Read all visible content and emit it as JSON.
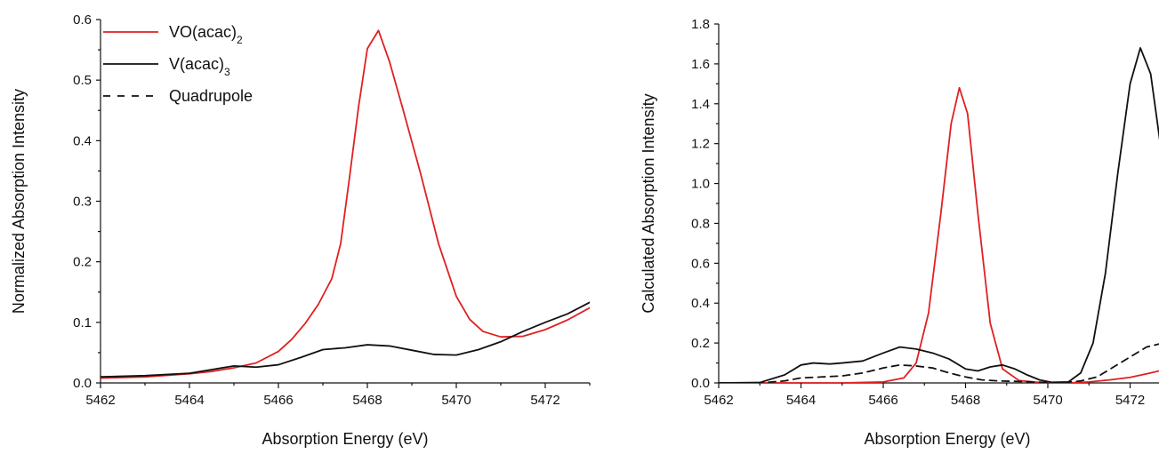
{
  "chart_data": [
    {
      "type": "line",
      "xlabel": "Absorption Energy (eV)",
      "ylabel": "Normalized Absorption Intensity",
      "xlim": [
        5462,
        5473
      ],
      "ylim": [
        0,
        0.6
      ],
      "xticks": [
        5462,
        5464,
        5466,
        5468,
        5470,
        5472
      ],
      "yticks": [
        0.0,
        0.1,
        0.2,
        0.3,
        0.4,
        0.5,
        0.6
      ],
      "ytick_format": 1,
      "legend_position": "top-left",
      "legend": [
        {
          "label": "VO(acac)",
          "sub": "2",
          "color": "#e02020",
          "dash": false
        },
        {
          "label": "V(acac)",
          "sub": "3",
          "color": "#111111",
          "dash": false
        },
        {
          "label": "Quadrupole",
          "sub": "",
          "color": "#111111",
          "dash": true
        }
      ],
      "series": [
        {
          "name": "VO(acac)2",
          "color": "#e02020",
          "dash": false,
          "x": [
            5462,
            5463,
            5464,
            5464.5,
            5465,
            5465.5,
            5466,
            5466.3,
            5466.6,
            5466.9,
            5467.2,
            5467.4,
            5467.6,
            5467.8,
            5468.0,
            5468.25,
            5468.5,
            5468.8,
            5469.2,
            5469.6,
            5470.0,
            5470.3,
            5470.6,
            5471.0,
            5471.5,
            5472.0,
            5472.5,
            5473
          ],
          "y": [
            0.008,
            0.01,
            0.015,
            0.019,
            0.025,
            0.033,
            0.052,
            0.072,
            0.098,
            0.13,
            0.172,
            0.23,
            0.34,
            0.455,
            0.552,
            0.582,
            0.53,
            0.452,
            0.345,
            0.23,
            0.143,
            0.105,
            0.085,
            0.076,
            0.077,
            0.088,
            0.104,
            0.124
          ]
        },
        {
          "name": "V(acac)3",
          "color": "#111111",
          "dash": false,
          "x": [
            5462,
            5463,
            5464,
            5464.5,
            5465,
            5465.5,
            5466,
            5466.5,
            5467,
            5467.5,
            5468,
            5468.5,
            5469,
            5469.5,
            5470,
            5470.5,
            5471,
            5471.5,
            5472,
            5472.5,
            5473
          ],
          "y": [
            0.01,
            0.012,
            0.016,
            0.022,
            0.028,
            0.026,
            0.03,
            0.042,
            0.055,
            0.058,
            0.063,
            0.061,
            0.054,
            0.047,
            0.046,
            0.055,
            0.068,
            0.085,
            0.1,
            0.114,
            0.133
          ]
        }
      ]
    },
    {
      "type": "line",
      "xlabel": "Absorption Energy (eV)",
      "ylabel": "Calculated Absorption Intensity",
      "xlim": [
        5462,
        5473
      ],
      "ylim": [
        0,
        1.8
      ],
      "xticks": [
        5462,
        5464,
        5466,
        5468,
        5470,
        5472
      ],
      "yticks": [
        0.0,
        0.2,
        0.4,
        0.6,
        0.8,
        1.0,
        1.2,
        1.4,
        1.6,
        1.8
      ],
      "ytick_format": 1,
      "series": [
        {
          "name": "VO(acac)2",
          "color": "#e02020",
          "dash": false,
          "x": [
            5462,
            5465,
            5466,
            5466.5,
            5466.8,
            5467.1,
            5467.4,
            5467.65,
            5467.85,
            5468.05,
            5468.3,
            5468.6,
            5468.9,
            5469.3,
            5469.8,
            5470.5,
            5471,
            5471.5,
            5472,
            5472.5,
            5473
          ],
          "y": [
            0,
            0,
            0.005,
            0.025,
            0.1,
            0.35,
            0.85,
            1.3,
            1.48,
            1.35,
            0.85,
            0.3,
            0.07,
            0.012,
            0.002,
            0,
            0.005,
            0.015,
            0.028,
            0.05,
            0.075
          ]
        },
        {
          "name": "V(acac)3",
          "color": "#111111",
          "dash": false,
          "x": [
            5462,
            5463,
            5463.6,
            5464,
            5464.3,
            5464.7,
            5465,
            5465.5,
            5466,
            5466.4,
            5466.8,
            5467.2,
            5467.6,
            5468,
            5468.3,
            5468.6,
            5468.9,
            5469.2,
            5469.5,
            5469.8,
            5470.1,
            5470.5,
            5470.8,
            5471.1,
            5471.4,
            5471.7,
            5472,
            5472.25,
            5472.5,
            5472.8,
            5473
          ],
          "y": [
            0,
            0.002,
            0.04,
            0.09,
            0.1,
            0.095,
            0.1,
            0.11,
            0.15,
            0.18,
            0.17,
            0.15,
            0.12,
            0.07,
            0.06,
            0.08,
            0.09,
            0.07,
            0.04,
            0.015,
            0.003,
            0.005,
            0.05,
            0.2,
            0.55,
            1.05,
            1.5,
            1.68,
            1.55,
            1.1,
            0.8
          ]
        },
        {
          "name": "Quadrupole",
          "color": "#111111",
          "dash": true,
          "x": [
            5462,
            5463,
            5463.6,
            5464,
            5464.5,
            5465,
            5465.5,
            5466,
            5466.4,
            5466.8,
            5467.2,
            5467.6,
            5468,
            5468.4,
            5468.8,
            5469.2,
            5469.6,
            5470,
            5470.4,
            5470.8,
            5471.2,
            5471.6,
            5472,
            5472.4,
            5472.7,
            5473
          ],
          "y": [
            0,
            0,
            0.01,
            0.025,
            0.03,
            0.035,
            0.05,
            0.075,
            0.09,
            0.085,
            0.075,
            0.05,
            0.03,
            0.015,
            0.01,
            0.008,
            0.005,
            0.002,
            0.002,
            0.01,
            0.03,
            0.08,
            0.13,
            0.18,
            0.195,
            0.19
          ]
        }
      ]
    }
  ]
}
